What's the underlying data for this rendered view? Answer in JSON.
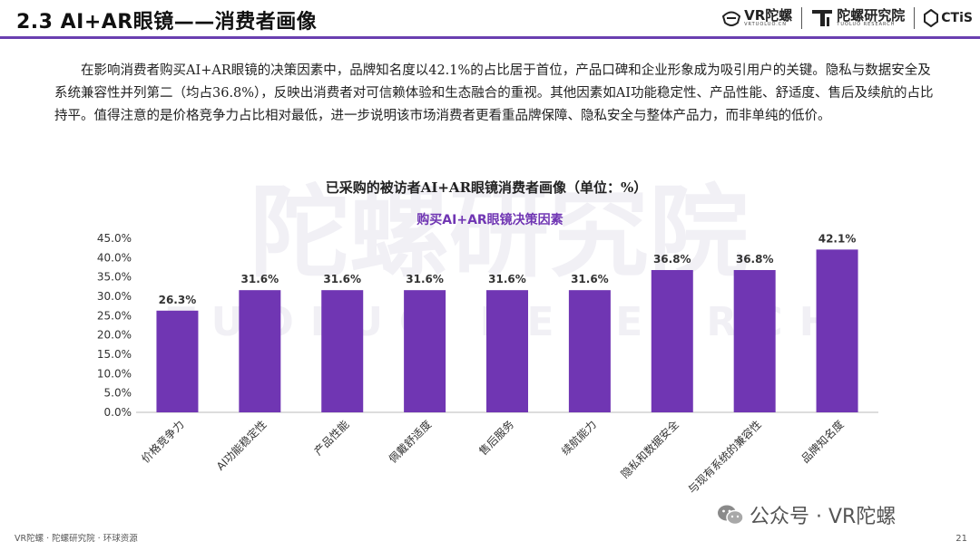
{
  "header": {
    "section_title": "2.3 AI+AR眼镜——消费者画像",
    "logo_vr_text": "VR陀螺",
    "logo_vr_sub": "VRTUOLUO.CN",
    "logo_research_text": "陀螺研究院",
    "logo_research_sub": "TUOLUO RESEARCH",
    "logo_ctis_text": "CTiS"
  },
  "paragraph": "在影响消费者购买AI+AR眼镜的决策因素中，品牌知名度以42.1%的占比居于首位，产品口碑和企业形象成为吸引用户的关键。隐私与数据安全及系统兼容性并列第二（均占36.8%），反映出消费者对可信赖体验和生态融合的重视。其他因素如AI功能稳定性、产品性能、舒适度、售后及续航的占比持平。值得注意的是价格竞争力占比相对最低，进一步说明该市场消费者更看重品牌保障、隐私安全与整体产品力，而非单纯的低价。",
  "watermark": {
    "big": "陀螺研究院",
    "sub": "TUOLUO RESEARCH"
  },
  "chart_data": {
    "type": "bar",
    "title": "已采购的被访者AI+AR眼镜消费者画像（单位：%）",
    "subtitle": "购买AI+AR眼镜决策因素",
    "categories": [
      "价格竞争力",
      "AI功能稳定性",
      "产品性能",
      "佩戴舒适度",
      "售后服务",
      "续航能力",
      "隐私和数据安全",
      "与现有系统的兼容性",
      "品牌知名度"
    ],
    "values": [
      26.3,
      31.6,
      31.6,
      31.6,
      31.6,
      31.6,
      36.8,
      36.8,
      42.1
    ],
    "value_labels": [
      "26.3%",
      "31.6%",
      "31.6%",
      "31.6%",
      "31.6%",
      "31.6%",
      "36.8%",
      "36.8%",
      "42.1%"
    ],
    "y_ticks": [
      "0.0%",
      "5.0%",
      "10.0%",
      "15.0%",
      "20.0%",
      "25.0%",
      "30.0%",
      "35.0%",
      "40.0%",
      "45.0%"
    ],
    "ylim": [
      0,
      45
    ],
    "grid": false,
    "bar_color": "#7036b3",
    "subtitle_color": "#7036b3"
  },
  "footer": {
    "source": "VR陀螺 · 陀螺研究院 · 环球资源",
    "page": "21",
    "wechat": "公众号 · VR陀螺"
  }
}
